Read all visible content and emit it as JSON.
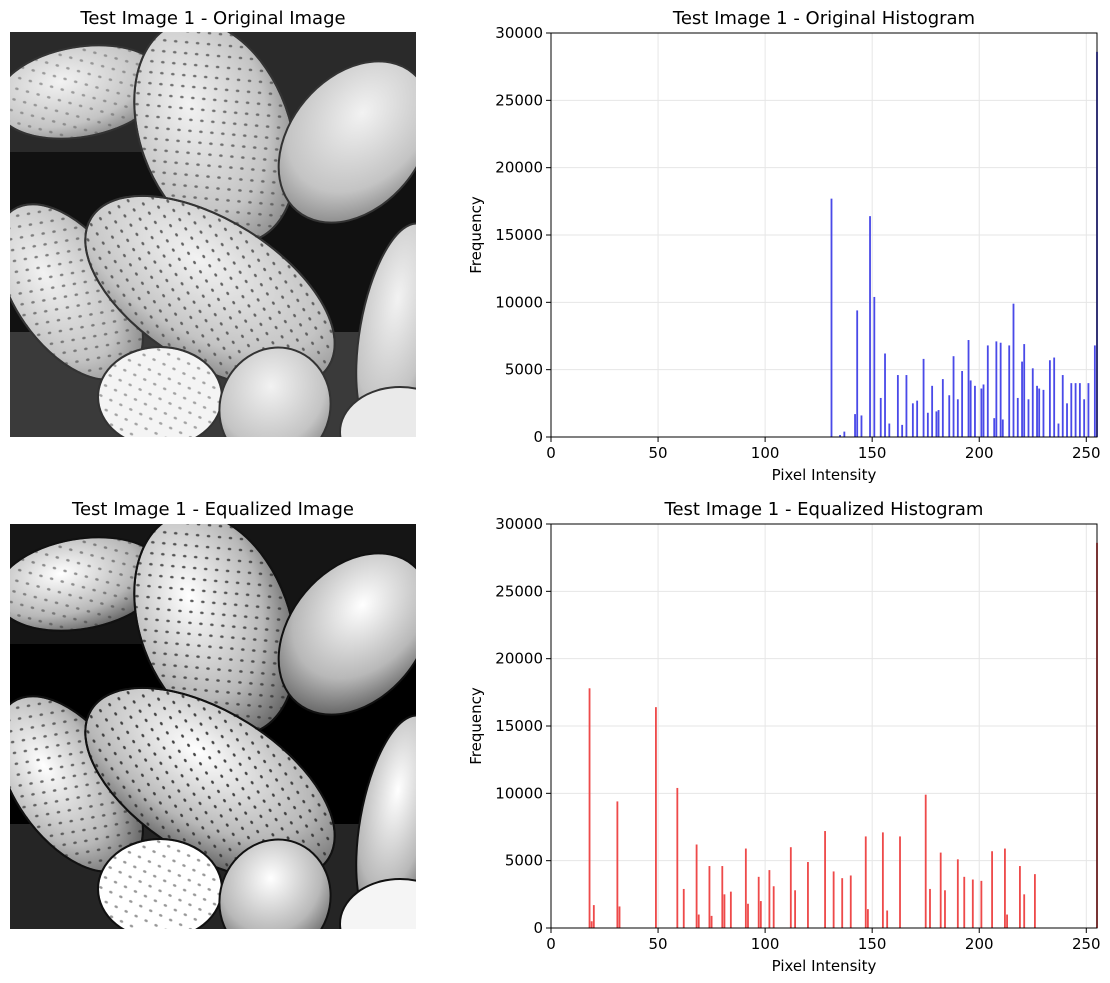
{
  "panels": {
    "original_image": {
      "title": "Test Image 1 - Original Image"
    },
    "equalized_image": {
      "title": "Test Image 1 - Equalized Image"
    }
  },
  "colors": {
    "original_bars": "#4a4ae8",
    "equalized_bars": "#ee4a4a",
    "grid": "#e6e6e6"
  },
  "chart_data": [
    {
      "type": "bar",
      "title": "Test Image 1 - Original Histogram",
      "xlabel": "Pixel Intensity",
      "ylabel": "Frequency",
      "xlim": [
        0,
        255
      ],
      "ylim": [
        0,
        30000
      ],
      "xticks": [
        0,
        50,
        100,
        150,
        200,
        250
      ],
      "yticks": [
        0,
        5000,
        10000,
        15000,
        20000,
        25000,
        30000
      ],
      "grid": true,
      "x": [
        131,
        135,
        137,
        142,
        143,
        145,
        149,
        151,
        154,
        156,
        158,
        162,
        164,
        166,
        169,
        171,
        174,
        176,
        178,
        180,
        181,
        183,
        186,
        188,
        190,
        192,
        195,
        196,
        198,
        201,
        202,
        204,
        207,
        208,
        210,
        211,
        214,
        216,
        218,
        220,
        221,
        223,
        225,
        227,
        228,
        230,
        233,
        235,
        237,
        239,
        241,
        243,
        245,
        247,
        249,
        251,
        254,
        255
      ],
      "values": [
        17700,
        150,
        400,
        1700,
        9400,
        1600,
        16400,
        10400,
        2900,
        6200,
        1000,
        4600,
        900,
        4600,
        2500,
        2700,
        5800,
        1800,
        3800,
        1900,
        2000,
        4300,
        3100,
        6000,
        2800,
        4900,
        7200,
        4200,
        3800,
        3600,
        3900,
        6800,
        1400,
        7100,
        7000,
        1300,
        6800,
        9900,
        2900,
        5600,
        6900,
        2800,
        5100,
        3800,
        3600,
        3500,
        5700,
        5900,
        1000,
        4600,
        2500,
        4000,
        4000,
        4000,
        2800,
        4000,
        6800,
        28600
      ]
    },
    {
      "type": "bar",
      "title": "Test Image 1 - Equalized Histogram",
      "xlabel": "Pixel Intensity",
      "ylabel": "Frequency",
      "xlim": [
        0,
        255
      ],
      "ylim": [
        0,
        30000
      ],
      "xticks": [
        0,
        50,
        100,
        150,
        200,
        250
      ],
      "yticks": [
        0,
        5000,
        10000,
        15000,
        20000,
        25000,
        30000
      ],
      "grid": true,
      "x": [
        18,
        19,
        20,
        31,
        32,
        49,
        59,
        62,
        68,
        69,
        74,
        75,
        80,
        81,
        84,
        91,
        92,
        97,
        98,
        102,
        104,
        112,
        114,
        120,
        128,
        132,
        136,
        140,
        147,
        148,
        155,
        157,
        163,
        175,
        177,
        182,
        184,
        190,
        193,
        197,
        201,
        206,
        212,
        213,
        219,
        221,
        226,
        255
      ],
      "values": [
        17800,
        500,
        1700,
        9400,
        1600,
        16400,
        10400,
        2900,
        6200,
        1000,
        4600,
        900,
        4600,
        2500,
        2700,
        5900,
        1800,
        3800,
        2000,
        4300,
        3100,
        6000,
        2800,
        4900,
        7200,
        4200,
        3700,
        3900,
        6800,
        1400,
        7100,
        1300,
        6800,
        9900,
        2900,
        5600,
        2800,
        5100,
        3800,
        3600,
        3500,
        5700,
        5900,
        1000,
        4600,
        2500,
        4000,
        28600
      ]
    }
  ]
}
